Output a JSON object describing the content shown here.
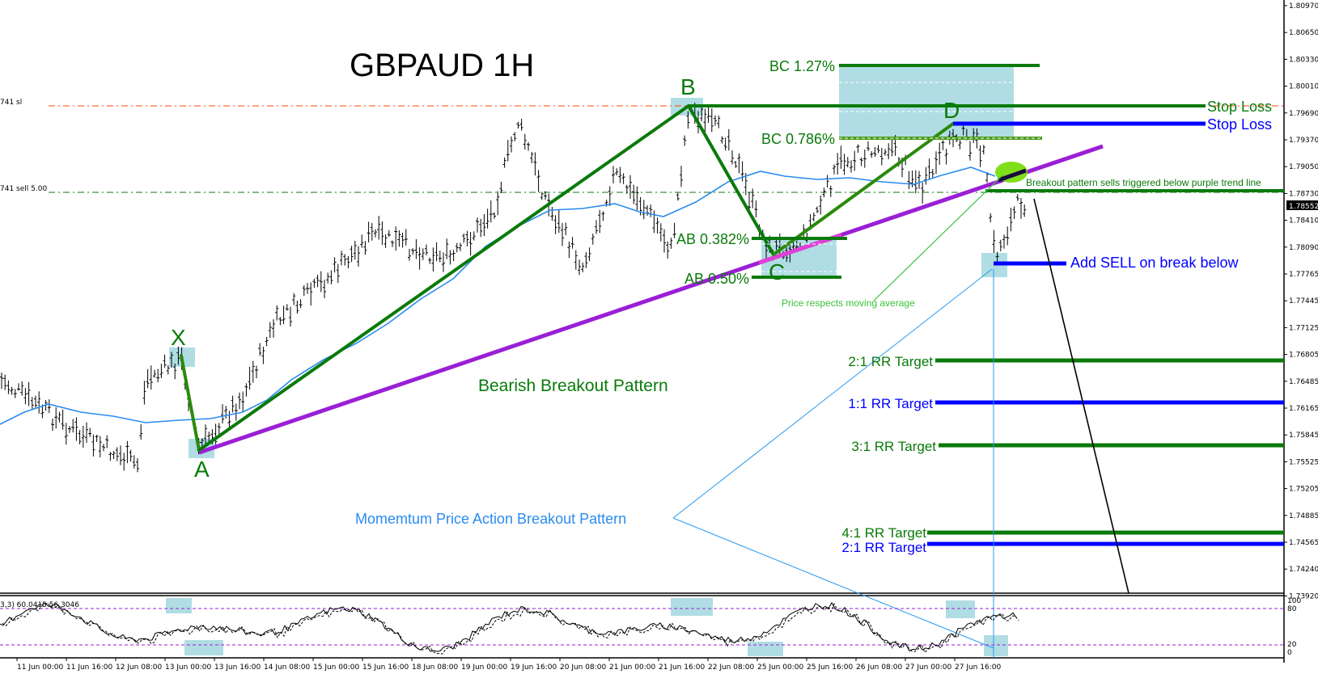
{
  "chart_data": {
    "type": "line",
    "title": "GBPAUD 1H",
    "symbol": "GBPAUD",
    "timeframe": "1H",
    "current_price": "1.78552",
    "yaxis": {
      "ticks": [
        "1.80970",
        "1.80650",
        "1.80330",
        "1.80010",
        "1.79690",
        "1.79370",
        "1.79050",
        "1.78730",
        "1.78410",
        "1.78090",
        "1.77765",
        "1.77445",
        "1.77125",
        "1.76805",
        "1.76485",
        "1.76165",
        "1.75845",
        "1.75525",
        "1.75205",
        "1.74885",
        "1.74565",
        "1.74240",
        "1.73920"
      ],
      "ylim": [
        1.7392,
        1.8097
      ]
    },
    "xaxis": {
      "ticks": [
        "11 Jun 00:00",
        "11 Jun 16:00",
        "12 Jun 08:00",
        "13 Jun 00:00",
        "13 Jun 16:00",
        "14 Jun 08:00",
        "15 Jun 00:00",
        "15 Jun 16:00",
        "18 Jun 08:00",
        "19 Jun 00:00",
        "19 Jun 16:00",
        "20 Jun 08:00",
        "21 Jun 00:00",
        "21 Jun 16:00",
        "22 Jun 08:00",
        "25 Jun 00:00",
        "25 Jun 16:00",
        "26 Jun 08:00",
        "27 Jun 00:00",
        "27 Jun 16:00"
      ]
    },
    "pattern_points": [
      {
        "label": "X",
        "price": 1.7676
      },
      {
        "label": "A",
        "price": 1.756
      },
      {
        "label": "B",
        "price": 1.7976
      },
      {
        "label": "C",
        "price": 1.7796
      },
      {
        "label": "D",
        "price": 1.7952
      }
    ],
    "levels": [
      {
        "label": "BC 1.27%",
        "price": 1.8027
      },
      {
        "label": "BC 0.786%",
        "price": 1.7935
      },
      {
        "label": "AB 0.382%",
        "price": 1.7815
      },
      {
        "label": "AB 0.50%",
        "price": 1.777
      },
      {
        "label": "Stop Loss (green)",
        "price": 1.7975
      },
      {
        "label": "Stop Loss (blue)",
        "price": 1.7952
      },
      {
        "label": "Entry sell",
        "price": 1.7874
      },
      {
        "label": "Add SELL on break below",
        "price": 1.7784
      },
      {
        "label": "2:1 RR Target (green)",
        "price": 1.767
      },
      {
        "label": "1:1 RR Target (blue)",
        "price": 1.7619
      },
      {
        "label": "3:1 RR Target (green)",
        "price": 1.7566
      },
      {
        "label": "4:1 RR Target (green)",
        "price": 1.7462
      },
      {
        "label": "2:1 RR Target (blue)",
        "price": 1.7448
      }
    ],
    "indicator": {
      "name": "Stochastic",
      "params_label": "3,3) 60.0415 56.3046",
      "levels": [
        80,
        20
      ],
      "scale": [
        "100",
        "80",
        "20",
        "0"
      ]
    }
  },
  "labels": {
    "title": "GBPAUD 1H",
    "order_sl": "741 sl",
    "order_sell": "741 sell 5.00",
    "x": "X",
    "a": "A",
    "b": "B",
    "c": "C",
    "d": "D",
    "bc127": "BC 1.27%",
    "bc786": "BC 0.786%",
    "ab382": "AB 0.382%",
    "ab50": "AB 0.50%",
    "stop_loss_green": "Stop Loss",
    "stop_loss_blue": "Stop Loss",
    "breakout_note": "Breakout pattern sells triggered below purple trend line",
    "add_sell": "Add SELL on break below",
    "price_respects": "Price respects moving average",
    "bearish": "Bearish Breakout Pattern",
    "momentum": "Momemtum Price Action Breakout Pattern",
    "rr_2_1_green": "2:1 RR Target",
    "rr_1_1_blue": "1:1 RR Target",
    "rr_3_1_green": "3:1 RR Target",
    "rr_4_1_green": "4:1 RR Target",
    "rr_2_1_blue": "2:1 RR Target"
  },
  "colors": {
    "green": "#0a7a0a",
    "blue": "#0000ff",
    "purple": "#9a1fd6",
    "lightblue_box": "#b0dde4",
    "ma": "#2a8cef",
    "sl_red": "#ff4500",
    "lime": "#7fe01a",
    "stoch_level": "#9a1fd6"
  }
}
